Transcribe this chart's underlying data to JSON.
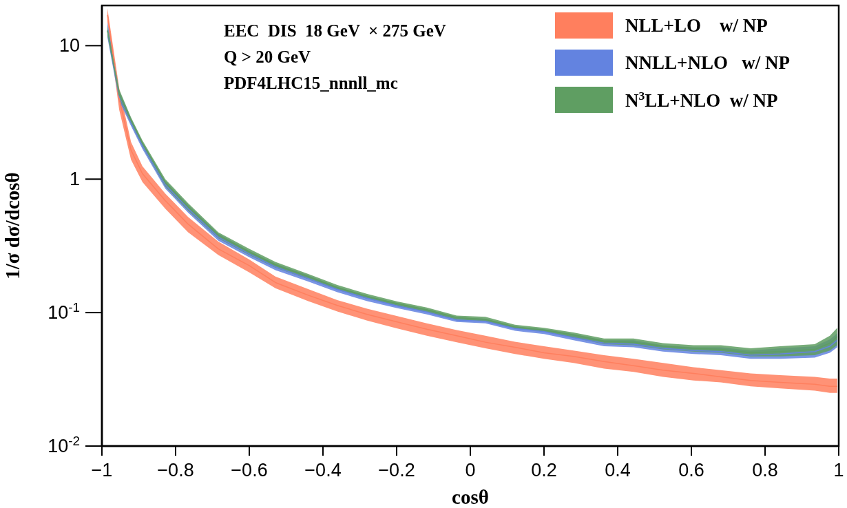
{
  "chart_data": {
    "type": "line",
    "xlabel": "cosθ",
    "ylabel": "1/σ dσ/dcosθ",
    "log": "y",
    "legend": "top right",
    "grid": false,
    "x": [
      -0.985,
      -0.953,
      -0.921,
      -0.89,
      -0.828,
      -0.766,
      -0.684,
      -0.6,
      -0.529,
      -0.44,
      -0.361,
      -0.28,
      -0.198,
      -0.118,
      -0.037,
      0.041,
      0.121,
      0.2,
      0.28,
      0.363,
      0.443,
      0.523,
      0.606,
      0.68,
      0.761,
      0.841,
      0.935,
      0.976,
      0.996
    ],
    "xlim": [
      -1,
      1
    ],
    "xticks": [
      -1,
      -0.8,
      -0.6,
      -0.4,
      -0.2,
      0,
      0.2,
      0.4,
      0.6,
      0.8,
      1
    ],
    "ylim": [
      0.01,
      20
    ],
    "yticks": [
      {
        "value": 0.01,
        "label": "10$^{-2}$"
      },
      {
        "value": 0.1,
        "label": "10$^{-1}$"
      },
      1,
      10
    ],
    "annotations": [
      "EEC  DIS  18 GeV  × 275 GeV",
      "Q > 20 GeV",
      "PDF4LHC15_nnnll_mc"
    ],
    "series": [
      {
        "name": "NLL+LO    w/ NP",
        "color": "#ff7f5e",
        "values": [
          17,
          4,
          1.65,
          1.1,
          0.69,
          0.46,
          0.3,
          0.225,
          0.168,
          0.135,
          0.113,
          0.097,
          0.085,
          0.075,
          0.067,
          0.06,
          0.055,
          0.05,
          0.047,
          0.043,
          0.04,
          0.037,
          0.035,
          0.033,
          0.031,
          0.03,
          0.029,
          0.028,
          0.028
        ],
        "lower": [
          15,
          3.3,
          1.4,
          0.95,
          0.6,
          0.4,
          0.27,
          0.2,
          0.152,
          0.122,
          0.102,
          0.087,
          0.076,
          0.067,
          0.06,
          0.054,
          0.049,
          0.045,
          0.042,
          0.038,
          0.036,
          0.033,
          0.031,
          0.03,
          0.028,
          0.027,
          0.026,
          0.025,
          0.025
        ],
        "upper": [
          19,
          4.8,
          1.9,
          1.25,
          0.78,
          0.52,
          0.34,
          0.25,
          0.186,
          0.15,
          0.124,
          0.107,
          0.094,
          0.083,
          0.074,
          0.067,
          0.0605,
          0.056,
          0.052,
          0.048,
          0.045,
          0.042,
          0.039,
          0.037,
          0.035,
          0.034,
          0.033,
          0.032,
          0.032
        ]
      },
      {
        "name": "NNLL+NLO   w/ NP",
        "color": "#6383e0",
        "values": [
          13,
          4.2,
          2.67,
          1.79,
          0.91,
          0.6,
          0.367,
          0.275,
          0.22,
          0.18,
          0.149,
          0.128,
          0.112,
          0.101,
          0.088,
          0.086,
          0.076,
          0.072,
          0.065,
          0.059,
          0.058,
          0.054,
          0.052,
          0.051,
          0.048,
          0.049,
          0.051,
          0.056,
          0.062
        ],
        "lower": [
          11.5,
          3.85,
          2.5,
          1.68,
          0.85,
          0.56,
          0.345,
          0.26,
          0.208,
          0.171,
          0.142,
          0.122,
          0.108,
          0.097,
          0.085,
          0.083,
          0.073,
          0.069,
          0.062,
          0.056,
          0.055,
          0.051,
          0.049,
          0.048,
          0.045,
          0.045,
          0.046,
          0.05,
          0.055
        ],
        "upper": [
          15,
          4.6,
          2.85,
          1.9,
          0.97,
          0.64,
          0.39,
          0.29,
          0.233,
          0.19,
          0.156,
          0.134,
          0.117,
          0.106,
          0.092,
          0.09,
          0.079,
          0.075,
          0.069,
          0.062,
          0.062,
          0.057,
          0.055,
          0.055,
          0.052,
          0.054,
          0.056,
          0.063,
          0.07
        ]
      },
      {
        "name": "N$^{3}$LL+NLO  w/ NP",
        "color": "#5f9e62",
        "values": [
          13,
          4.3,
          2.75,
          1.85,
          0.94,
          0.62,
          0.38,
          0.285,
          0.228,
          0.186,
          0.154,
          0.132,
          0.117,
          0.105,
          0.092,
          0.089,
          0.078,
          0.074,
          0.068,
          0.061,
          0.06,
          0.056,
          0.054,
          0.053,
          0.05,
          0.051,
          0.053,
          0.059,
          0.066
        ],
        "lower": [
          12,
          4,
          2.6,
          1.75,
          0.88,
          0.58,
          0.36,
          0.27,
          0.217,
          0.178,
          0.148,
          0.127,
          0.113,
          0.101,
          0.089,
          0.086,
          0.076,
          0.072,
          0.065,
          0.058,
          0.057,
          0.053,
          0.051,
          0.05,
          0.047,
          0.047,
          0.048,
          0.052,
          0.057
        ],
        "upper": [
          14,
          4.7,
          2.9,
          1.95,
          1,
          0.66,
          0.4,
          0.3,
          0.24,
          0.195,
          0.161,
          0.138,
          0.121,
          0.109,
          0.095,
          0.093,
          0.081,
          0.077,
          0.071,
          0.064,
          0.064,
          0.059,
          0.057,
          0.057,
          0.054,
          0.056,
          0.058,
          0.067,
          0.077
        ]
      }
    ]
  }
}
